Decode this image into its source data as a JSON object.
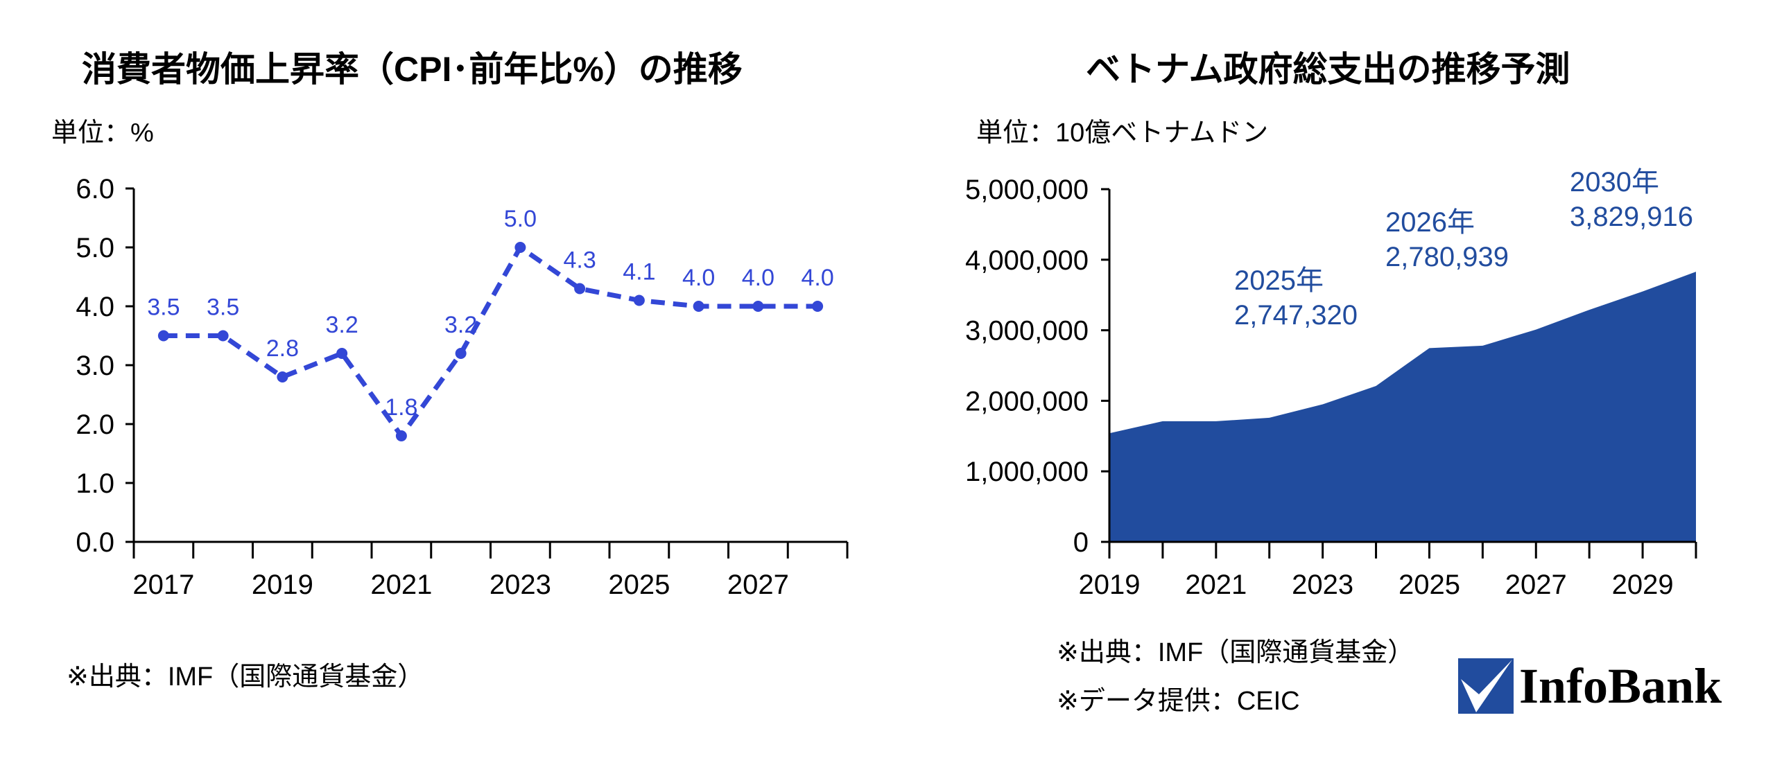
{
  "chart_data": [
    {
      "type": "line",
      "title": "消費者物価上昇率（CPI･前年比%）の推移",
      "unit_label": "単位：%",
      "x": [
        2017,
        2018,
        2019,
        2020,
        2021,
        2022,
        2023,
        2024,
        2025,
        2026,
        2027,
        2028
      ],
      "values": [
        3.5,
        3.5,
        2.8,
        3.2,
        1.8,
        3.2,
        5.0,
        4.3,
        4.1,
        4.0,
        4.0,
        4.0
      ],
      "data_labels": [
        "3.5",
        "3.5",
        "2.8",
        "3.2",
        "1.8",
        "3.2",
        "5.0",
        "4.3",
        "4.1",
        "4.0",
        "4.0",
        "4.0"
      ],
      "x_tick_labels": [
        "2017",
        "2019",
        "2021",
        "2023",
        "2025",
        "2027"
      ],
      "y_tick_labels": [
        "0.0",
        "1.0",
        "2.0",
        "3.0",
        "4.0",
        "5.0",
        "6.0"
      ],
      "ylim": [
        0,
        6
      ],
      "line_style": "dashed",
      "color": "#3347d6",
      "grid": false,
      "source": "※出典：IMF（国際通貨基金）"
    },
    {
      "type": "area",
      "title": "ベトナム政府総支出の推移予測",
      "unit_label": "単位：10億ベトナムドン",
      "x": [
        2019,
        2020,
        2021,
        2022,
        2023,
        2024,
        2025,
        2026,
        2027,
        2028,
        2029,
        2030
      ],
      "values": [
        1540000,
        1710000,
        1710000,
        1760000,
        1950000,
        2210000,
        2747320,
        2780939,
        3010000,
        3290000,
        3550000,
        3829916
      ],
      "x_tick_labels": [
        "2019",
        "2021",
        "2023",
        "2025",
        "2027",
        "2029"
      ],
      "y_tick_labels": [
        "0",
        "1,000,000",
        "2,000,000",
        "3,000,000",
        "4,000,000",
        "5,000,000"
      ],
      "ylim": [
        0,
        5000000
      ],
      "color": "#214c9e",
      "grid": false,
      "annotations": [
        {
          "year_label": "2025年",
          "value_label": "2,747,320"
        },
        {
          "year_label": "2026年",
          "value_label": "2,780,939"
        },
        {
          "year_label": "2030年",
          "value_label": "3,829,916"
        }
      ],
      "source": "※出典：IMF（国際通貨基金）",
      "data_provider": "※データ提供：CEIC"
    }
  ],
  "logo": {
    "text": "InfoBank",
    "color": "#214c9e"
  }
}
